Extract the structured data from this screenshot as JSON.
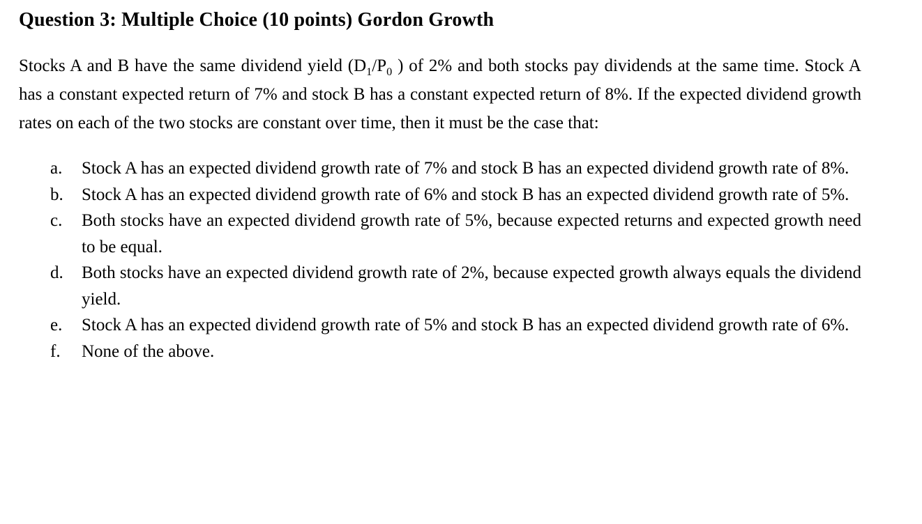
{
  "document": {
    "title": "Question 3: Multiple Choice (10 points) Gordon Growth",
    "question": {
      "seg1": "Stocks A and B have the same dividend yield (D",
      "sub1": "1",
      "seg2": "/P",
      "sub2": "0",
      "seg3": " ) of 2% and both stocks pay dividends at the same time. Stock A has a constant expected return of 7% and stock B has a constant expected return of 8%. If the expected dividend growth rates on each of the two stocks are constant over time, then it must be the case that:"
    },
    "options": [
      {
        "letter": "a.",
        "text": "Stock A has an expected dividend growth rate of 7% and stock B has an expected dividend growth rate of 8%."
      },
      {
        "letter": "b.",
        "text": "Stock A has an expected dividend growth rate of 6% and stock B has an expected dividend growth rate of 5%."
      },
      {
        "letter": "c.",
        "text": "Both stocks have an expected dividend growth rate of 5%, because expected returns and expected growth need to be equal."
      },
      {
        "letter": "d.",
        "text": "Both stocks have an expected dividend growth rate of 2%, because expected growth always equals the dividend yield."
      },
      {
        "letter": "e.",
        "text": "Stock A has an expected dividend growth rate of 5% and stock B has an expected dividend growth rate of 6%."
      },
      {
        "letter": "f.",
        "text": "None of the above."
      }
    ]
  }
}
